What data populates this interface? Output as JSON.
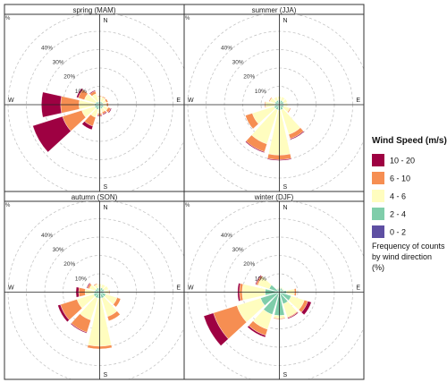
{
  "colors": {
    "0-2": "#5e4fa2",
    "2-4": "#7fcdaa",
    "4-6": "#fffdbf",
    "6-10": "#f68e52",
    "10-20": "#9e0142",
    "frame": "#333333",
    "panel_header": "#ffffff",
    "grid": "#bdbdbd"
  },
  "legend": {
    "title": "Wind Speed (m/s)",
    "items": [
      {
        "key": "10-20",
        "label": "10 - 20"
      },
      {
        "key": "6-10",
        "label": "6 - 10"
      },
      {
        "key": "4-6",
        "label": "4 - 6"
      },
      {
        "key": "2-4",
        "label": "2 - 4"
      },
      {
        "key": "0-2",
        "label": "0 - 2"
      }
    ],
    "caption_lines": [
      "Frequency of counts",
      "by wind direction",
      "(%)"
    ]
  },
  "compass": {
    "n": "N",
    "e": "E",
    "s": "S",
    "w": "W"
  },
  "ring_labels": [
    "10%",
    "20%",
    "30%",
    "40%"
  ],
  "chart_data": [
    {
      "type": "windrose",
      "title": "spring (MAM)",
      "unit": "frequency of counts by wind direction (%)",
      "rings": [
        10,
        20,
        30,
        40,
        50
      ],
      "speed_bins": [
        "0-2",
        "2-4",
        "4-6",
        "6-10",
        "10-20"
      ],
      "directions": [
        0,
        30,
        60,
        90,
        120,
        150,
        180,
        210,
        240,
        270,
        300,
        330
      ],
      "frequencies": [
        [
          0.3,
          1.5,
          2.5,
          0.5,
          0.0
        ],
        [
          0.3,
          1.5,
          2.5,
          0.5,
          0.0
        ],
        [
          0.3,
          1.5,
          2.0,
          1.0,
          0.0
        ],
        [
          0.3,
          1.5,
          2.0,
          1.0,
          0.0
        ],
        [
          0.3,
          2.0,
          2.5,
          1.5,
          0.5
        ],
        [
          0.3,
          2.0,
          2.0,
          1.0,
          0.5
        ],
        [
          0.3,
          2.0,
          2.5,
          1.0,
          0.5
        ],
        [
          0.3,
          2.5,
          4.5,
          5.0,
          2.0
        ],
        [
          0.3,
          2.5,
          7.5,
          11.0,
          17.0
        ],
        [
          0.3,
          2.5,
          8.5,
          10.0,
          10.5
        ],
        [
          0.3,
          2.0,
          6.5,
          3.5,
          1.0
        ],
        [
          0.3,
          1.5,
          4.5,
          1.5,
          0.5
        ]
      ]
    },
    {
      "type": "windrose",
      "title": "summer (JJA)",
      "unit": "frequency of counts by wind direction (%)",
      "rings": [
        10,
        20,
        30,
        40,
        50
      ],
      "speed_bins": [
        "0-2",
        "2-4",
        "4-6",
        "6-10",
        "10-20"
      ],
      "directions": [
        0,
        30,
        60,
        90,
        120,
        150,
        180,
        210,
        240,
        270,
        300,
        330
      ],
      "frequencies": [
        [
          0.5,
          2.0,
          2.0,
          0.0,
          0.0
        ],
        [
          0.5,
          2.0,
          2.0,
          0.0,
          0.0
        ],
        [
          0.5,
          2.0,
          2.0,
          0.0,
          0.0
        ],
        [
          0.5,
          2.0,
          2.0,
          0.0,
          0.0
        ],
        [
          0.5,
          2.0,
          3.5,
          0.5,
          0.0
        ],
        [
          0.5,
          2.5,
          14.0,
          2.5,
          0.5
        ],
        [
          0.5,
          2.5,
          24.5,
          2.5,
          0.5
        ],
        [
          0.5,
          2.5,
          19.5,
          4.5,
          0.5
        ],
        [
          0.5,
          2.5,
          12.5,
          4.0,
          0.0
        ],
        [
          0.5,
          2.0,
          5.0,
          0.5,
          0.0
        ],
        [
          0.5,
          2.0,
          3.0,
          0.5,
          0.0
        ],
        [
          0.5,
          2.0,
          2.0,
          0.0,
          0.0
        ]
      ]
    },
    {
      "type": "windrose",
      "title": "autumn (SON)",
      "unit": "frequency of counts by wind direction (%)",
      "rings": [
        10,
        20,
        30,
        40,
        50
      ],
      "speed_bins": [
        "0-2",
        "2-4",
        "4-6",
        "6-10",
        "10-20"
      ],
      "directions": [
        0,
        30,
        60,
        90,
        120,
        150,
        180,
        210,
        240,
        270,
        300,
        330
      ],
      "frequencies": [
        [
          0.5,
          2.0,
          2.0,
          0.0,
          0.0
        ],
        [
          0.5,
          2.0,
          2.0,
          0.0,
          0.0
        ],
        [
          0.5,
          2.0,
          2.5,
          0.0,
          0.0
        ],
        [
          0.5,
          2.0,
          2.5,
          0.5,
          0.0
        ],
        [
          0.5,
          3.0,
          6.5,
          2.0,
          0.0
        ],
        [
          0.5,
          3.0,
          10.5,
          2.5,
          0.0
        ],
        [
          0.5,
          3.0,
          26.0,
          1.5,
          0.0
        ],
        [
          0.5,
          3.0,
          12.5,
          7.0,
          0.5
        ],
        [
          0.5,
          3.0,
          9.5,
          9.5,
          1.5
        ],
        [
          0.5,
          2.5,
          5.0,
          3.5,
          1.5
        ],
        [
          0.5,
          2.0,
          3.5,
          1.0,
          0.5
        ],
        [
          0.5,
          2.0,
          2.0,
          0.5,
          0.0
        ]
      ]
    },
    {
      "type": "windrose",
      "title": "winter (DJF)",
      "unit": "frequency of counts by wind direction (%)",
      "rings": [
        10,
        20,
        30,
        40,
        50
      ],
      "speed_bins": [
        "0-2",
        "2-4",
        "4-6",
        "6-10",
        "10-20"
      ],
      "directions": [
        0,
        30,
        60,
        90,
        120,
        150,
        180,
        210,
        240,
        270,
        300,
        330
      ],
      "frequencies": [
        [
          0.3,
          2.0,
          0.5,
          0.0,
          0.0
        ],
        [
          0.3,
          2.0,
          0.5,
          0.0,
          0.0
        ],
        [
          0.3,
          2.0,
          0.5,
          0.0,
          0.0
        ],
        [
          0.3,
          3.5,
          4.5,
          1.0,
          0.0
        ],
        [
          0.3,
          6.5,
          7.5,
          2.0,
          2.0
        ],
        [
          0.3,
          6.5,
          7.5,
          0.5,
          0.5
        ],
        [
          0.3,
          12.5,
          1.5,
          0.5,
          0.0
        ],
        [
          0.3,
          12.5,
          8.5,
          3.5,
          1.0
        ],
        [
          0.3,
          10.5,
          13.5,
          13.5,
          5.5
        ],
        [
          0.3,
          7.5,
          12.5,
          1.5,
          1.0
        ],
        [
          0.3,
          5.5,
          6.5,
          1.0,
          0.5
        ],
        [
          0.3,
          1.5,
          0.5,
          0.0,
          0.0
        ]
      ]
    }
  ]
}
